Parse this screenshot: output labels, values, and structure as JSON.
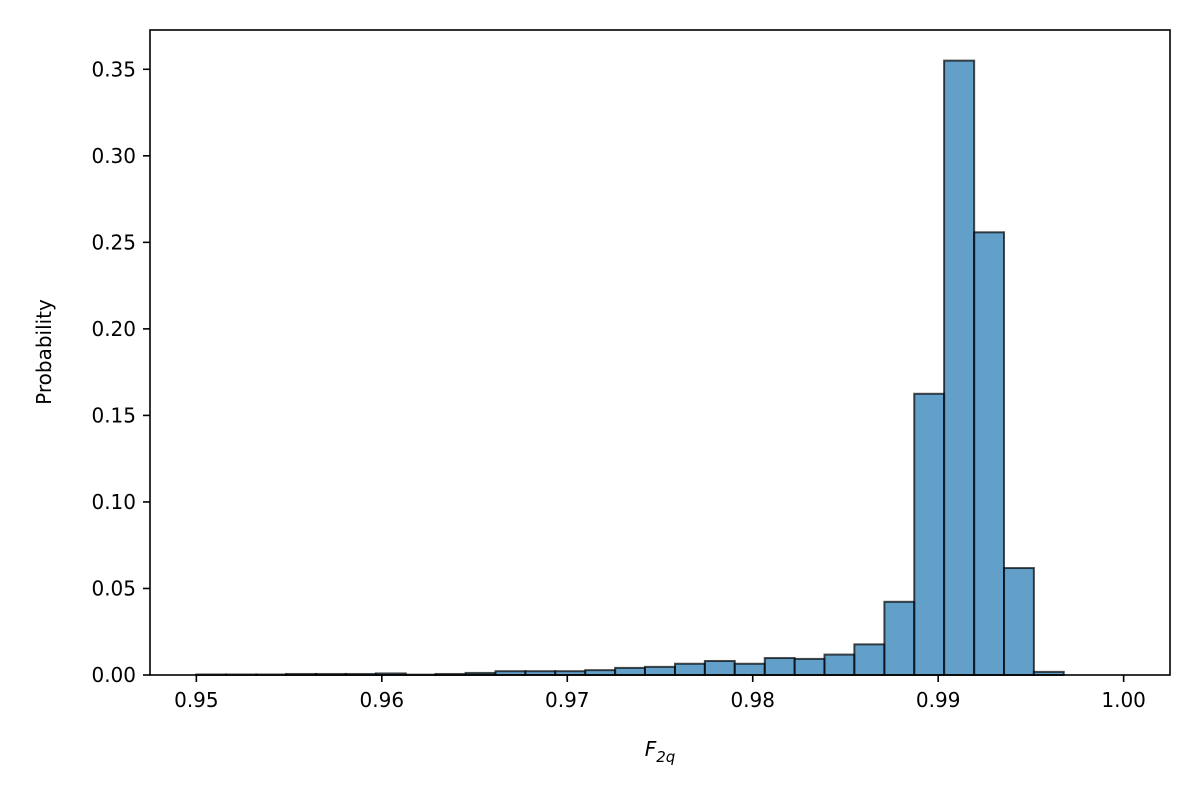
{
  "chart_data": {
    "type": "bar",
    "title": "",
    "xlabel": "F",
    "xlabel_sub": "2q",
    "ylabel": "Probability",
    "xlim": [
      0.9475,
      1.0025
    ],
    "ylim": [
      0,
      0.3727
    ],
    "grid": false,
    "x_ticks": [
      0.95,
      0.96,
      0.97,
      0.98,
      0.99,
      1.0
    ],
    "x_tick_labels": [
      "0.95",
      "0.96",
      "0.97",
      "0.98",
      "0.99",
      "1.00"
    ],
    "y_ticks": [
      0.0,
      0.05,
      0.1,
      0.15,
      0.2,
      0.25,
      0.3,
      0.35
    ],
    "y_tick_labels": [
      "0.00",
      "0.05",
      "0.10",
      "0.15",
      "0.20",
      "0.25",
      "0.30",
      "0.35"
    ],
    "bin_edges": [
      0.95,
      0.95161,
      0.95323,
      0.95484,
      0.95645,
      0.95806,
      0.95968,
      0.96129,
      0.9629,
      0.96452,
      0.96613,
      0.96774,
      0.96935,
      0.97097,
      0.97258,
      0.97419,
      0.97581,
      0.97742,
      0.97903,
      0.98065,
      0.98226,
      0.98387,
      0.98548,
      0.9871,
      0.98871,
      0.99032,
      0.99194,
      0.99355,
      0.99516,
      0.99677,
      0.99839
    ],
    "values": [
      0.0003,
      0.0003,
      0.0003,
      0.0006,
      0.0006,
      0.0006,
      0.0009,
      0.0002,
      0.0006,
      0.0012,
      0.0022,
      0.0022,
      0.0022,
      0.0028,
      0.0041,
      0.0047,
      0.0065,
      0.0081,
      0.0065,
      0.0098,
      0.0093,
      0.0118,
      0.0177,
      0.0423,
      0.1625,
      0.355,
      0.2558,
      0.0618,
      0.0018,
      0.0
    ],
    "colors": {
      "bar_fill": "#1f77b4",
      "bar_edge": "#000000"
    }
  }
}
